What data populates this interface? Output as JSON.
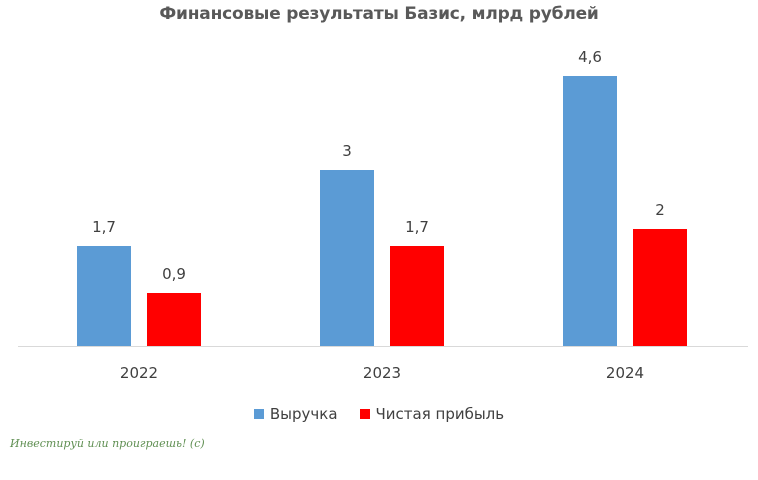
{
  "chart_data": {
    "type": "bar",
    "title": "Финансовые результаты Базис, млрд рублей",
    "categories": [
      "2022",
      "2023",
      "2024"
    ],
    "series": [
      {
        "name": "Выручка",
        "color": "#5b9bd5",
        "values": [
          1.7,
          3,
          4.6
        ],
        "labels": [
          "1,7",
          "3",
          "4,6"
        ]
      },
      {
        "name": "Чистая прибыль",
        "color": "#ff0000",
        "values": [
          0.9,
          1.7,
          2
        ],
        "labels": [
          "0,9",
          "1,7",
          "2"
        ]
      }
    ],
    "xlabel": "",
    "ylabel": "",
    "ylim": [
      0,
      4.6
    ],
    "grid": false,
    "legend_position": "bottom",
    "data_labels": true
  },
  "watermark": "Инвестируй или проиграешь! (с)"
}
